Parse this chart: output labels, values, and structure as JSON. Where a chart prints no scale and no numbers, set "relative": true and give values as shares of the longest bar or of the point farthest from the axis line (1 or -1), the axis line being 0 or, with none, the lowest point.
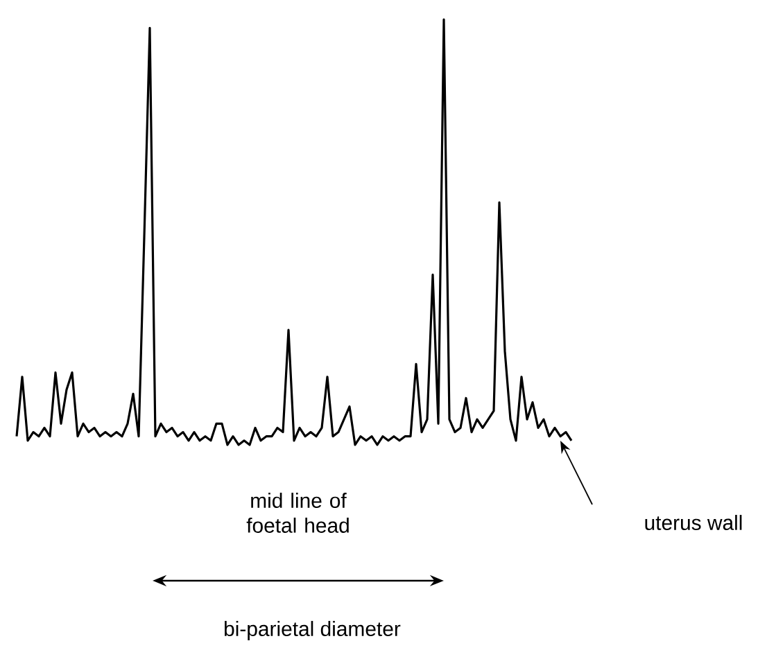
{
  "chart_data": {
    "type": "line",
    "relative": true,
    "color": "#000000",
    "categories": [
      null,
      null,
      null,
      null,
      null,
      null,
      null,
      null,
      null,
      null,
      null,
      null,
      null,
      null,
      null,
      null,
      null,
      null,
      null,
      null,
      null,
      null,
      null,
      null,
      null,
      null,
      null,
      null,
      null,
      null,
      null,
      null,
      null,
      null,
      null,
      null,
      null,
      null,
      null,
      null,
      null,
      null,
      null,
      null,
      null,
      null,
      null,
      null,
      null,
      null,
      null,
      null,
      null,
      null,
      null,
      null,
      null,
      null,
      null,
      null,
      null,
      null,
      null,
      null,
      null,
      null,
      null,
      null,
      null,
      null,
      null,
      null,
      null,
      null,
      null,
      null,
      null,
      null,
      null,
      null,
      null,
      null,
      null,
      null,
      null,
      null,
      null,
      null,
      null,
      null,
      null,
      null,
      null,
      null,
      null,
      null,
      null,
      null,
      null,
      null,
      null
    ],
    "values": [
      0.02,
      0.16,
      0.01,
      0.03,
      0.02,
      0.04,
      0.02,
      0.17,
      0.05,
      0.13,
      0.17,
      0.02,
      0.05,
      0.03,
      0.04,
      0.02,
      0.03,
      0.02,
      0.03,
      0.02,
      0.05,
      0.12,
      0.02,
      0.49,
      0.98,
      0.02,
      0.05,
      0.03,
      0.04,
      0.02,
      0.03,
      0.01,
      0.03,
      0.01,
      0.02,
      0.01,
      0.05,
      0.05,
      0,
      0.02,
      0,
      0.01,
      0,
      0.04,
      0.01,
      0.02,
      0.02,
      0.04,
      0.03,
      0.27,
      0.01,
      0.04,
      0.02,
      0.03,
      0.02,
      0.04,
      0.16,
      0.02,
      0.03,
      0.06,
      0.09,
      0,
      0.02,
      0.01,
      0.02,
      0,
      0.02,
      0.01,
      0.02,
      0.01,
      0.02,
      0.02,
      0.19,
      0.03,
      0.06,
      0.4,
      0.05,
      1,
      0.06,
      0.03,
      0.04,
      0.11,
      0.03,
      0.06,
      0.04,
      0.06,
      0.08,
      0.57,
      0.22,
      0.06,
      0.01,
      0.16,
      0.06,
      0.1,
      0.04,
      0.06,
      0.02,
      0.04,
      0.02,
      0.03,
      0.01
    ],
    "annotations": [
      "mid line of foetal head",
      "uterus wall",
      "bi-parietal diameter"
    ]
  }
}
